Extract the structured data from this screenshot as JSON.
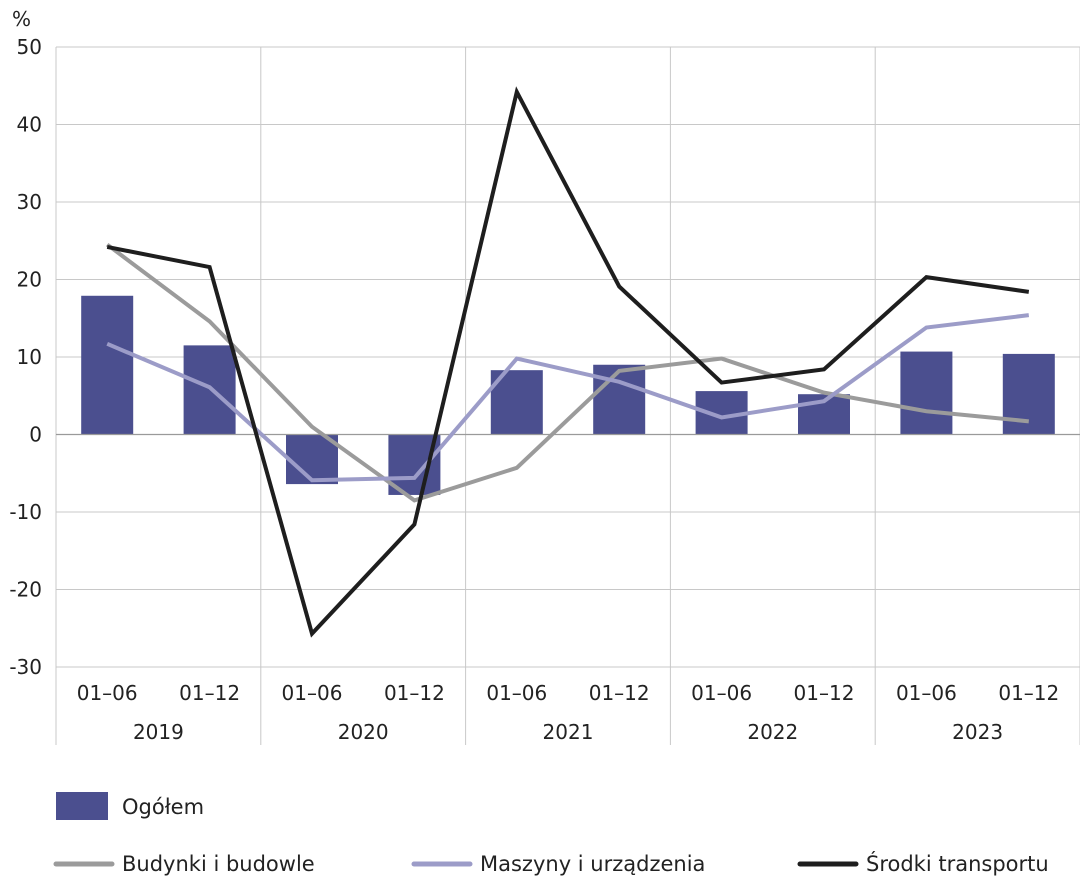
{
  "chart_data": {
    "type": "bar+line",
    "unit_label": "%",
    "ylim": [
      -30,
      50
    ],
    "yticks": [
      50,
      40,
      30,
      20,
      10,
      0,
      -10,
      -20,
      -30
    ],
    "categories": [
      "01–06",
      "01–12",
      "01–06",
      "01–12",
      "01–06",
      "01–12",
      "01–06",
      "01–12",
      "01–06",
      "01–12"
    ],
    "years": [
      "2019",
      "2020",
      "2021",
      "2022",
      "2023"
    ],
    "grid": true,
    "legend_position": "bottom",
    "bars": {
      "name": "Ogółem",
      "color": "#4b4f8f",
      "values": [
        17.9,
        11.5,
        -6.4,
        -7.8,
        8.3,
        9.0,
        5.6,
        5.2,
        10.7,
        10.4
      ]
    },
    "series": [
      {
        "name": "Budynki i budowle",
        "color": "#9b9b9b",
        "values": [
          24.5,
          14.6,
          1.0,
          -8.5,
          -4.3,
          8.2,
          9.8,
          5.4,
          3.0,
          1.7
        ]
      },
      {
        "name": "Maszyny i urządzenia",
        "color": "#9c9cc8",
        "values": [
          11.7,
          6.1,
          -5.9,
          -5.6,
          9.8,
          6.8,
          2.2,
          4.3,
          13.8,
          15.4
        ]
      },
      {
        "name": "Środki transportu",
        "color": "#1e1e1e",
        "values": [
          24.2,
          21.6,
          -25.7,
          -11.6,
          44.2,
          19.1,
          6.7,
          8.4,
          20.3,
          18.4
        ]
      }
    ]
  }
}
